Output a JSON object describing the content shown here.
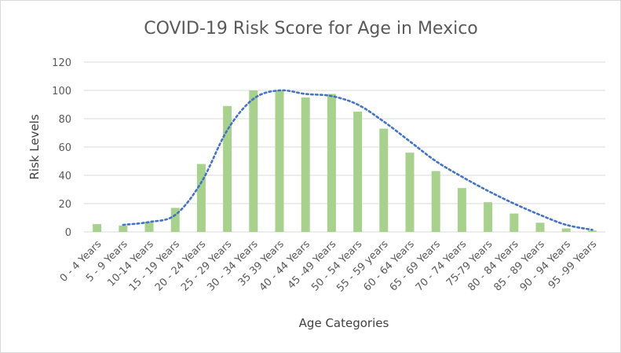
{
  "chart_data": {
    "type": "bar",
    "title": "COVID-19 Risk Score for Age in Mexico",
    "xlabel": "Age Categories",
    "ylabel": "Risk Levels",
    "ylim": [
      0,
      120
    ],
    "yticks": [
      0,
      20,
      40,
      60,
      80,
      100,
      120
    ],
    "grid": true,
    "categories": [
      "0 - 4 Years",
      "5 - 9 Years",
      "10-14 Years",
      "15 - 19 Years",
      "20 - 24 Years",
      "25 - 29 Years",
      "30 - 34 Years",
      "35 39 Years",
      "40 - 44 Years",
      "45 -49 Years",
      "50 - 54 Years",
      "55 - 59 years",
      "60 - 64 Years",
      "65 - 69 Years",
      "70 - 74 Years",
      "75-79 Years",
      "80 - 84 Years",
      "85 - 89 Years",
      "90 - 94 Years",
      "95 -99 Years"
    ],
    "values": [
      5.5,
      4.5,
      7,
      17,
      48,
      89,
      100,
      100,
      95,
      97.5,
      85,
      73,
      56,
      43,
      31,
      21,
      13,
      6.5,
      2.5,
      1
    ],
    "trendline": {
      "style": "dotted",
      "values": [
        null,
        5,
        7,
        12,
        35,
        72,
        94,
        100,
        97.5,
        96,
        90,
        78,
        64,
        50,
        39,
        29,
        20,
        12,
        5,
        1.5
      ]
    },
    "colors": {
      "bars": "#a9d18e",
      "trendline": "#4472c4"
    }
  }
}
